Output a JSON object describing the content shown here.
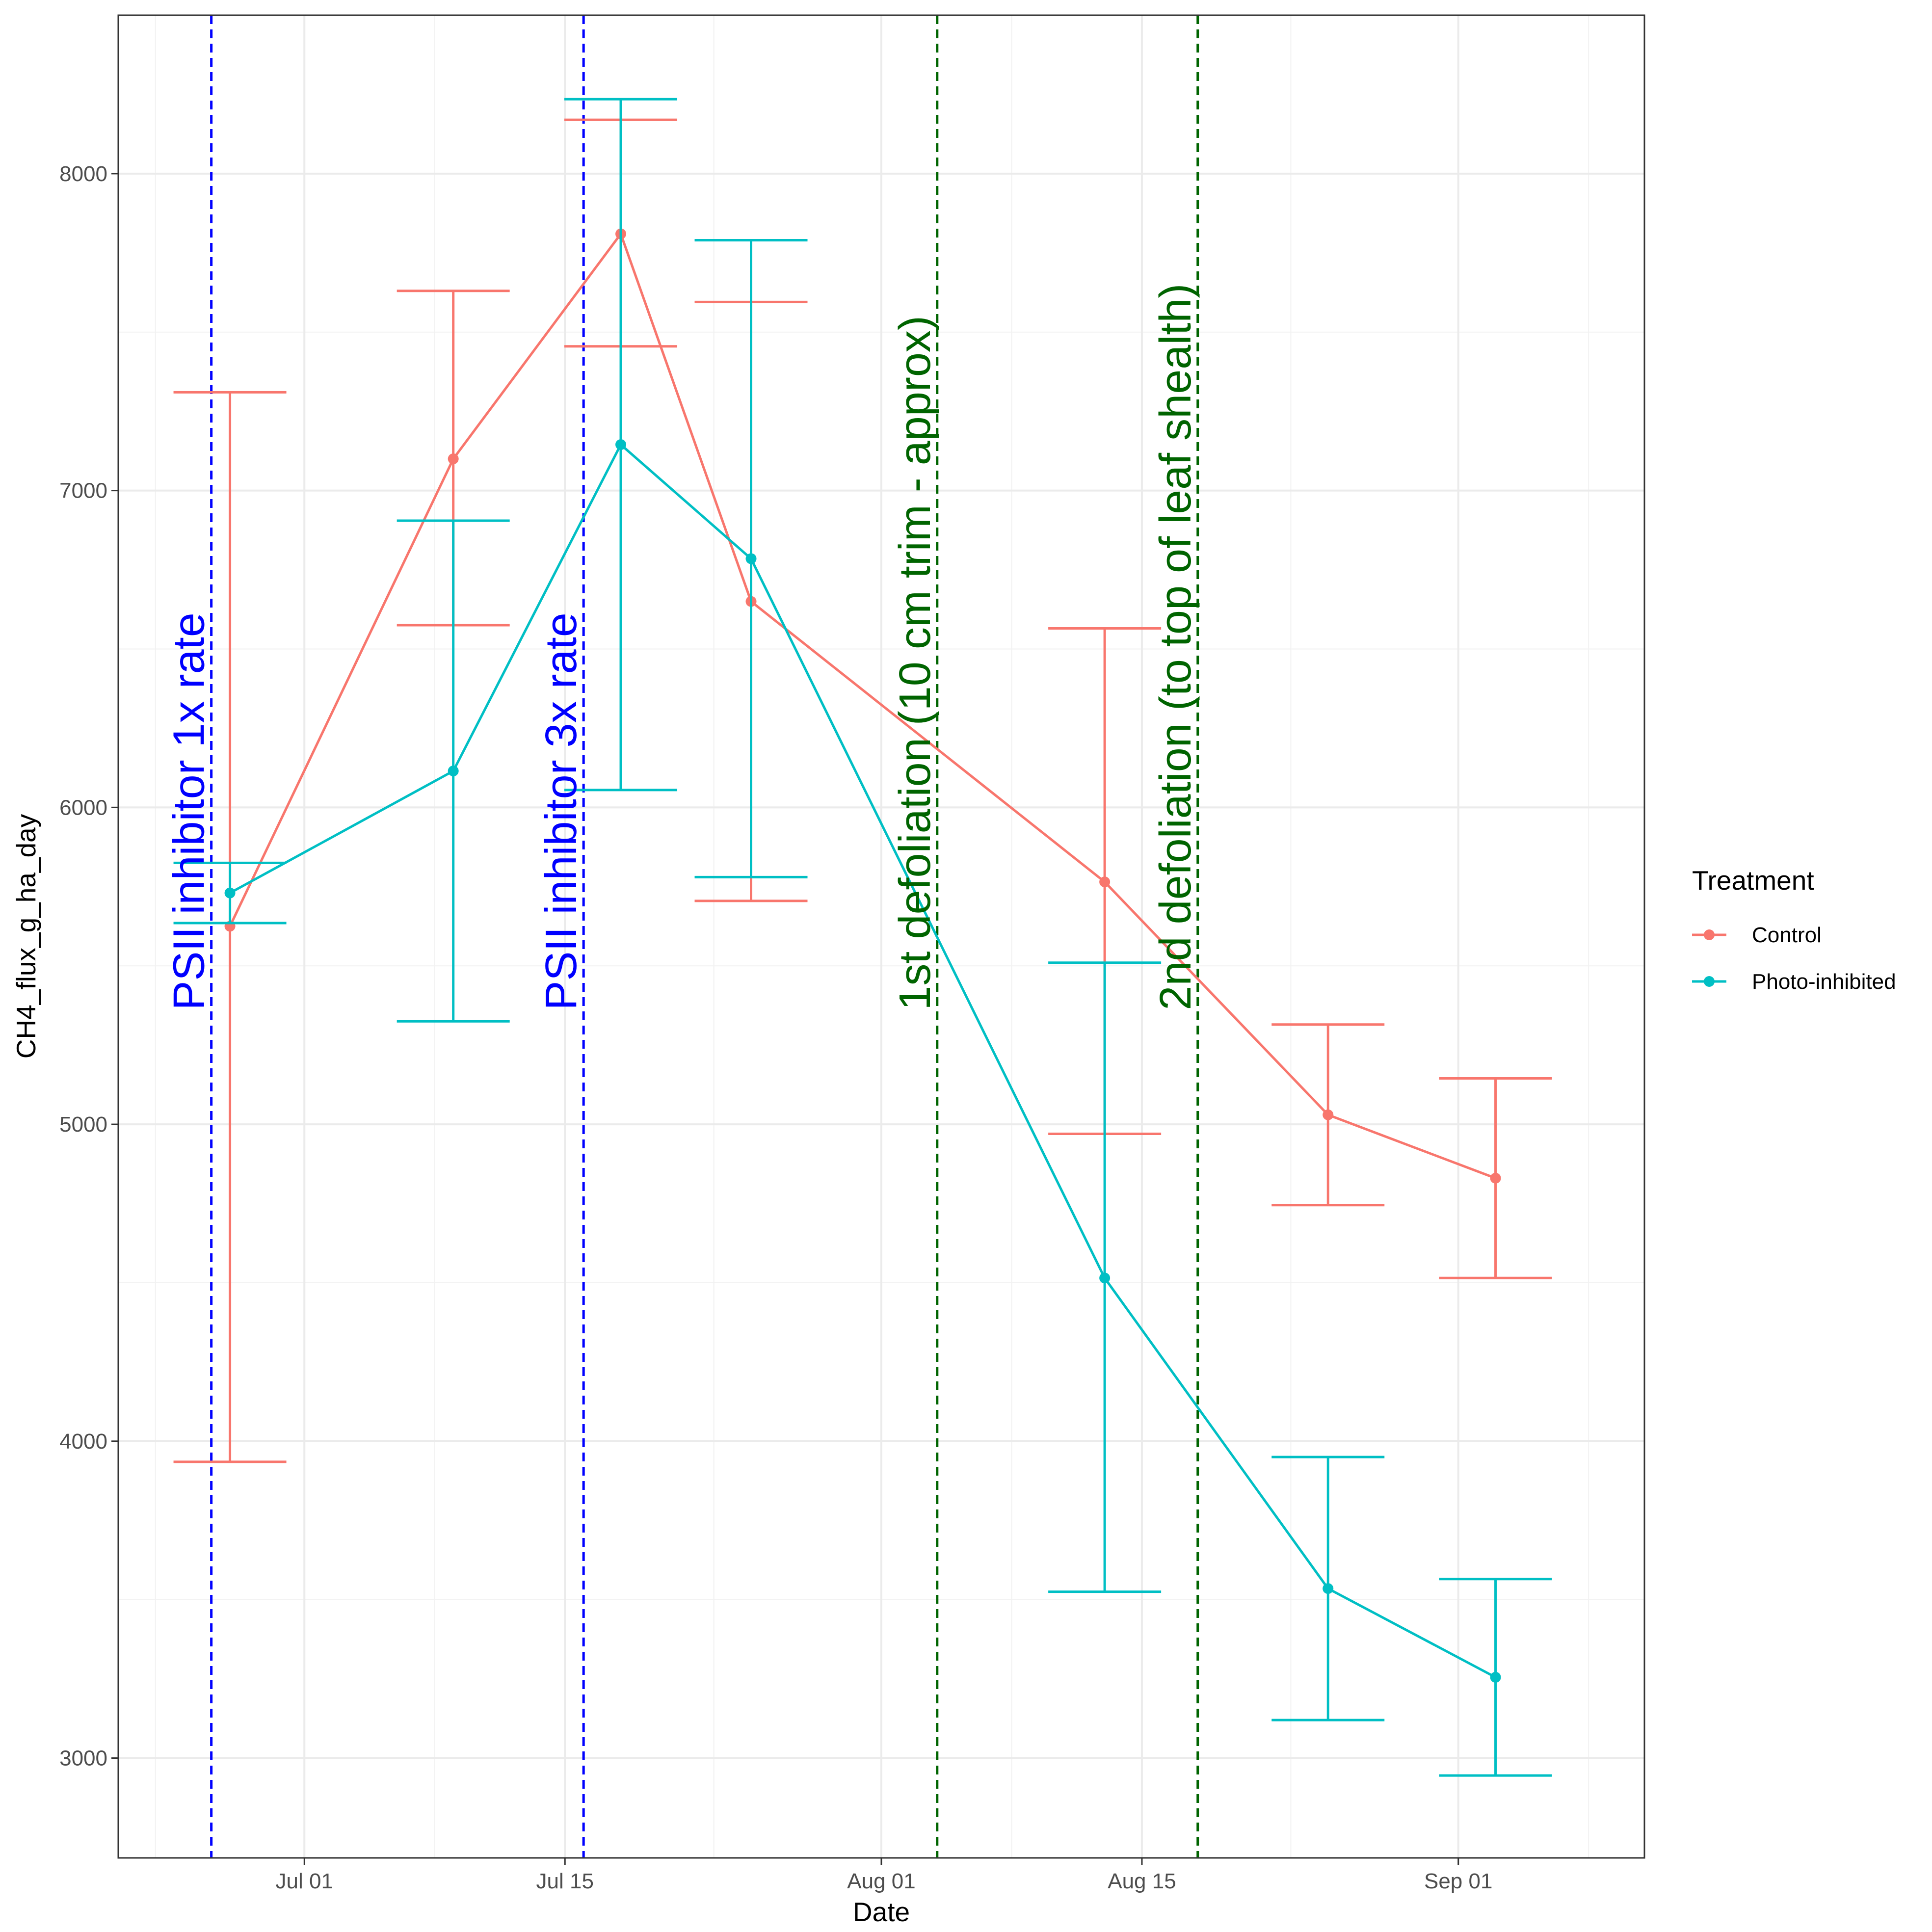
{
  "chart_data": {
    "type": "line",
    "xlabel": "Date",
    "ylabel": "CH4_flux_g_ha_day",
    "x_axis": {
      "kind": "date",
      "range": [
        "2024-06-21",
        "2024-09-11"
      ],
      "major_ticks": [
        {
          "date": "2024-07-01",
          "label": "Jul 01"
        },
        {
          "date": "2024-07-15",
          "label": "Jul 15"
        },
        {
          "date": "2024-08-01",
          "label": "Aug 01"
        },
        {
          "date": "2024-08-15",
          "label": "Aug 15"
        },
        {
          "date": "2024-09-01",
          "label": "Sep 01"
        }
      ],
      "minor_grid": [
        "2024-06-23",
        "2024-07-08",
        "2024-07-23",
        "2024-08-08",
        "2024-08-23",
        "2024-09-08"
      ]
    },
    "y_axis": {
      "range": [
        2685,
        8500
      ],
      "major_ticks": [
        3000,
        4000,
        5000,
        6000,
        7000,
        8000
      ],
      "minor_grid": [
        3500,
        4500,
        5500,
        6500,
        7500,
        8500
      ]
    },
    "grid": true,
    "legend": {
      "title": "Treatment",
      "position": "right"
    },
    "series": [
      {
        "name": "Control",
        "color": "#F8766D",
        "points": [
          {
            "x": "2024-06-27",
            "y": 5625,
            "ymin": 3935,
            "ymax": 7310
          },
          {
            "x": "2024-07-09",
            "y": 7100,
            "ymin": 6575,
            "ymax": 7630
          },
          {
            "x": "2024-07-18",
            "y": 7810,
            "ymin": 7455,
            "ymax": 8170
          },
          {
            "x": "2024-07-25",
            "y": 6650,
            "ymin": 5705,
            "ymax": 7595
          },
          {
            "x": "2024-08-13",
            "y": 5765,
            "ymin": 4970,
            "ymax": 6565
          },
          {
            "x": "2024-08-25",
            "y": 5030,
            "ymin": 4745,
            "ymax": 5315
          },
          {
            "x": "2024-09-03",
            "y": 4830,
            "ymin": 4515,
            "ymax": 5145
          }
        ]
      },
      {
        "name": "Photo-inhibited",
        "color": "#00BFC4",
        "points": [
          {
            "x": "2024-06-27",
            "y": 5730,
            "ymin": 5635,
            "ymax": 5825
          },
          {
            "x": "2024-07-09",
            "y": 6115,
            "ymin": 5325,
            "ymax": 6905
          },
          {
            "x": "2024-07-18",
            "y": 7145,
            "ymin": 6055,
            "ymax": 8235
          },
          {
            "x": "2024-07-25",
            "y": 6785,
            "ymin": 5780,
            "ymax": 7790
          },
          {
            "x": "2024-08-13",
            "y": 4515,
            "ymin": 3525,
            "ymax": 5510
          },
          {
            "x": "2024-08-25",
            "y": 3535,
            "ymin": 3120,
            "ymax": 3950
          },
          {
            "x": "2024-09-03",
            "y": 3255,
            "ymin": 2945,
            "ymax": 3565
          }
        ]
      }
    ],
    "annotations": [
      {
        "x": "2024-06-26",
        "label": "PSII inhibitor 1x rate",
        "color": "#0000FF"
      },
      {
        "x": "2024-07-16",
        "label": "PSII inhibitor 3x rate",
        "color": "#0000FF"
      },
      {
        "x": "2024-08-04",
        "label": "1st defoliation (10 cm trim - approx)",
        "color": "#006400"
      },
      {
        "x": "2024-08-18",
        "label": "2nd defoliation (to top of leaf shealth)",
        "color": "#006400"
      }
    ]
  }
}
